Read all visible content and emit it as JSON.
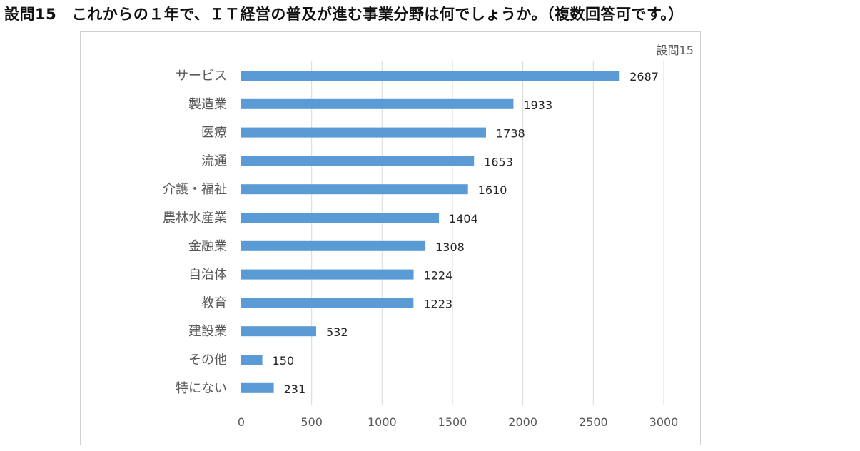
{
  "page": {
    "title": "設問15　これからの１年で、ＩＴ経営の普及が進む事業分野は何でしょうか。（複数回答可です。）"
  },
  "chart_data": {
    "type": "bar",
    "orientation": "horizontal",
    "title": "設問15",
    "categories": [
      "サービス",
      "製造業",
      "医療",
      "流通",
      "介護・福祉",
      "農林水産業",
      "金融業",
      "自治体",
      "教育",
      "建設業",
      "その他",
      "特にない"
    ],
    "series": [
      {
        "values": [
          2687,
          1933,
          1738,
          1653,
          1610,
          1404,
          1308,
          1224,
          1223,
          532,
          150,
          231
        ]
      }
    ],
    "xlim": [
      0,
      3000
    ],
    "x_ticks": [
      0,
      500,
      1000,
      1500,
      2000,
      2500,
      3000
    ],
    "xlabel": "",
    "ylabel": "",
    "grid": "vertical",
    "legend": "none",
    "data_labels": true,
    "bar_color": "#5b9bd5"
  }
}
